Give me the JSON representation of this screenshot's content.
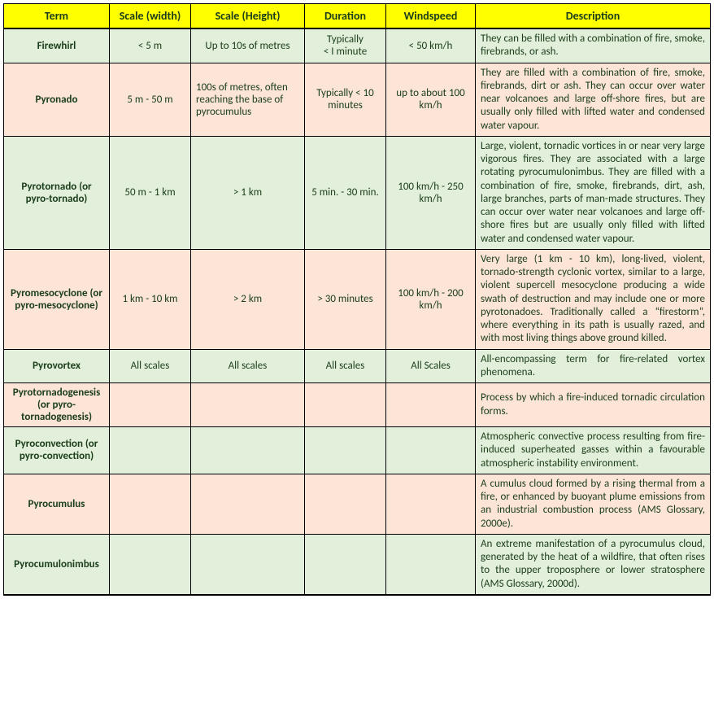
{
  "table": {
    "headers": {
      "term": "Term",
      "width": "Scale (width)",
      "height": "Scale (Height)",
      "duration": "Duration",
      "windspeed": "Windspeed",
      "description": "Description"
    },
    "colors": {
      "header_bg": "#ffff00",
      "row_green": "#e2efda",
      "row_tan": "#fce4d6",
      "border": "#000000",
      "text": "#1a3d1a"
    },
    "rows": [
      {
        "shade": "green",
        "term": "Firewhirl",
        "width": "< 5 m",
        "height": "Up to 10s of metres",
        "duration": "Typically\n< I minute",
        "windspeed": "< 50 km/h",
        "description": "They can be filled with a combination of fire, smoke, firebrands, or ash."
      },
      {
        "shade": "tan",
        "term": "Pyronado",
        "width": "5 m - 50 m",
        "height": "100s of metres, often reaching the base of pyrocumulus",
        "duration": "Typically < 10 minutes",
        "windspeed": "up to about 100 km/h",
        "description": "They are filled with a combination of fire, smoke, firebrands, dirt or ash. They can occur over water near volcanoes and large off-shore fires, but are usually only filled with lifted water and condensed water vapour."
      },
      {
        "shade": "green",
        "term": "Pyrotornado (or pyro-tornado)",
        "width": "50 m - 1 km",
        "height": "> 1  km",
        "duration": "5 min. - 30 min.",
        "windspeed": "100 km/h - 250 km/h",
        "description": "Large, violent, tornadic vortices in or near very large vigorous fires. They are associated with a large rotating pyrocumulonimbus. They are filled with a combination of fire, smoke, firebrands, dirt, ash, large branches, parts of man-made structures. They can occur over water near volcanoes and large off-shore fires but are usually only filled with lifted water and condensed water vapour."
      },
      {
        "shade": "tan",
        "term": "Pyromesocyclone (or pyro-mesocyclone)",
        "width": "1 km - 10 km",
        "height": "> 2 km",
        "duration": "> 30 minutes",
        "windspeed": "100 km/h - 200 km/h",
        "description": "Very large (1 km - 10 km), long-lived, violent, tornado-strength cyclonic vortex, similar to a large, violent supercell mesocyclone producing a wide swath of destruction and may include one or more pyrotonadoes. Traditionally called a “firestorm”, where everything in its path is usually razed, and with most living things above ground killed."
      },
      {
        "shade": "green",
        "term": "Pyrovortex",
        "width": "All scales",
        "height": "All scales",
        "duration": "All scales",
        "windspeed": "All Scales",
        "description": "All-encompassing term for fire-related vortex phenomena."
      },
      {
        "shade": "tan",
        "term": "Pyrotornadogenesis (or pyro-tornadogenesis)",
        "width": "",
        "height": "",
        "duration": "",
        "windspeed": "",
        "description": "Process by which a fire-induced tornadic circulation forms."
      },
      {
        "shade": "green",
        "term": "Pyroconvection (or pyro-convection)",
        "width": "",
        "height": "",
        "duration": "",
        "windspeed": "",
        "description": "Atmospheric convective process resulting from fire-induced superheated gasses within a favourable atmospheric instability environment."
      },
      {
        "shade": "tan",
        "term": "Pyrocumulus",
        "width": "",
        "height": "",
        "duration": "",
        "windspeed": "",
        "description": "A cumulus cloud formed by a rising thermal from a fire, or enhanced by buoyant plume emissions from an industrial combustion process (AMS Glossary, 2000e)."
      },
      {
        "shade": "green",
        "term": "Pyrocumulonimbus",
        "width": "",
        "height": "",
        "duration": "",
        "windspeed": "",
        "description": "An extreme manifestation of a pyrocumulus cloud, generated by the heat of a wildfire, that often rises to the upper troposphere or lower stratosphere (AMS Glossary, 2000d)."
      }
    ]
  }
}
